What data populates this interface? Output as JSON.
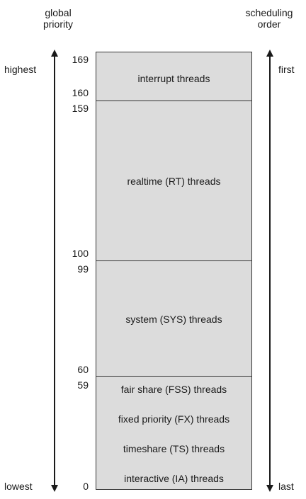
{
  "header": {
    "left_line1": "global",
    "left_line2": "priority",
    "right_line1": "scheduling",
    "right_line2": "order"
  },
  "side_labels": {
    "highest": "highest",
    "lowest": "lowest",
    "first": "first",
    "last": "last"
  },
  "priority_numbers": [
    "169",
    "160",
    "159",
    "100",
    "99",
    "60",
    "59",
    "0"
  ],
  "bands": {
    "interrupt": "interrupt threads",
    "realtime": "realtime (RT) threads",
    "system": "system (SYS) threads",
    "fss": "fair share (FSS) threads",
    "fx": "fixed priority (FX) threads",
    "ts": "timeshare (TS) threads",
    "ia": "interactive (IA) threads"
  }
}
